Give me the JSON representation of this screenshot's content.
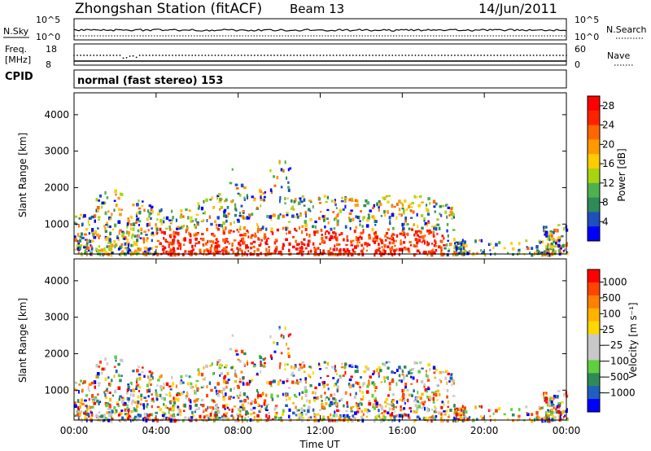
{
  "header": {
    "title": "Zhongshan Station (fitACF)",
    "beam": "Beam 13",
    "date": "14/Jun/2011"
  },
  "panels": {
    "nsky": {
      "left_label": "N.Sky",
      "right_label": "N.Search",
      "left_ticks": [
        "10^5",
        "10^0"
      ],
      "right_ticks": [
        "10^5",
        "10^0"
      ]
    },
    "freq": {
      "left_label_top": "Freq.",
      "left_label_bottom": "[MHz]",
      "right_label": "Nave",
      "left_ticks": [
        "18",
        "8"
      ],
      "right_ticks": [
        "60",
        "0"
      ]
    },
    "cpid": {
      "label": "CPID",
      "text": "normal (fast stereo) 153"
    }
  },
  "colors": {
    "power_scale": [
      "#0000ff",
      "#1f4fbf",
      "#2e8b57",
      "#4fb04f",
      "#a8d40f",
      "#ffcc00",
      "#ff9900",
      "#ff6600",
      "#ff2200",
      "#ff0000"
    ],
    "velocity_scale": [
      "#ff0000",
      "#ff4400",
      "#ff7f00",
      "#ffb300",
      "#ffd700",
      "#c8c8c8",
      "#c8c8c8",
      "#5fcf3f",
      "#2e8b57",
      "#1f5fbf",
      "#0000ff"
    ]
  },
  "chart_data": [
    {
      "type": "heatmap",
      "name": "power",
      "ylabel": "Slant Range [km]",
      "y_ticks": [
        "1000",
        "2000",
        "3000",
        "4000"
      ],
      "ylim": [
        180,
        4600
      ],
      "x_ticks": [
        "00:00",
        "04:00",
        "08:00",
        "12:00",
        "16:00",
        "20:00",
        "00:00"
      ],
      "xlim": [
        0,
        24
      ],
      "colorbar": {
        "label": "Power [dB]",
        "ticks": [
          "4",
          "8",
          "12",
          "16",
          "20",
          "24",
          "28"
        ],
        "range": [
          0,
          30
        ]
      }
    },
    {
      "type": "heatmap",
      "name": "velocity",
      "ylabel": "Slant Range [km]",
      "y_ticks": [
        "1000",
        "2000",
        "3000",
        "4000"
      ],
      "ylim": [
        180,
        4600
      ],
      "x_ticks": [
        "00:00",
        "04:00",
        "08:00",
        "12:00",
        "16:00",
        "20:00",
        "00:00"
      ],
      "xlim": [
        0,
        24
      ],
      "xlabel": "Time UT",
      "colorbar": {
        "label": "Velocity [m s⁻¹]",
        "ticks": [
          "1000",
          "500",
          "100",
          "25",
          "−25",
          "−100",
          "−500",
          "−1000"
        ]
      }
    }
  ]
}
